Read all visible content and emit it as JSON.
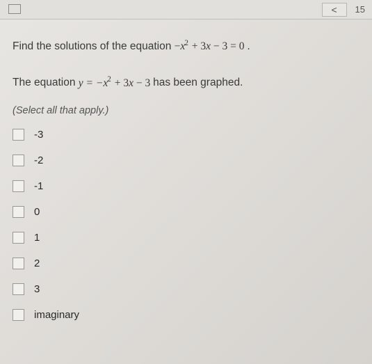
{
  "header": {
    "page_number": "15",
    "nav_prev_glyph": "<"
  },
  "question": {
    "intro_text": "Find the solutions of the equation ",
    "equation_lhs_neg": "−",
    "equation_var": "x",
    "equation_exp": "2",
    "equation_mid": " + 3",
    "equation_var2": "x",
    "equation_tail": " − 3 = 0",
    "period": "."
  },
  "graphed": {
    "intro_text": "The equation ",
    "y_eq": "y = −",
    "var": "x",
    "exp": "2",
    "mid": " + 3",
    "var2": "x",
    "tail": " − 3",
    "outro": " has been graphed."
  },
  "instruction": "(Select all that apply.)",
  "options": [
    {
      "label": "-3"
    },
    {
      "label": "-2"
    },
    {
      "label": "-1"
    },
    {
      "label": "0"
    },
    {
      "label": "1"
    },
    {
      "label": "2"
    },
    {
      "label": "3"
    },
    {
      "label": "imaginary"
    }
  ],
  "colors": {
    "text": "#3a3a3a",
    "muted": "#555555",
    "border": "#9a9894",
    "background": "#e2e0dc"
  }
}
